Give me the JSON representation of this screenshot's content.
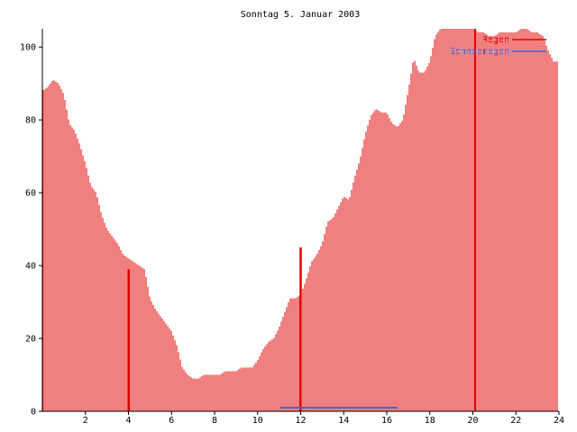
{
  "chart_data": {
    "type": "bar",
    "title": "Sonntag 5. Januar 2003",
    "xlabel": "",
    "ylabel": "",
    "xlim": [
      0,
      24
    ],
    "ylim": [
      0,
      105
    ],
    "xticks": [
      "2",
      "4",
      "6",
      "8",
      "10",
      "12",
      "14",
      "16",
      "18",
      "20",
      "22",
      "24"
    ],
    "yticks": [
      "0",
      "20",
      "40",
      "60",
      "80",
      "100"
    ],
    "grid": false,
    "legend_position": "top-right",
    "colors": {
      "series1": "#e00000",
      "series2": "#5060d0",
      "axis": "#000000"
    },
    "series": [
      {
        "name": "Regen",
        "x": [
          0,
          0.25,
          0.5,
          0.75,
          1,
          1.25,
          1.5,
          1.75,
          2,
          2.25,
          2.5,
          2.75,
          3,
          3.25,
          3.5,
          3.75,
          4,
          4.25,
          4.5,
          4.75,
          5,
          5.25,
          5.5,
          5.75,
          6,
          6.25,
          6.5,
          6.75,
          7,
          7.25,
          7.5,
          7.75,
          8,
          8.25,
          8.5,
          8.75,
          9,
          9.25,
          9.5,
          9.75,
          10,
          10.25,
          10.5,
          10.75,
          11,
          11.25,
          11.5,
          11.75,
          12,
          12.25,
          12.5,
          12.75,
          13,
          13.25,
          13.5,
          13.75,
          14,
          14.25,
          14.5,
          14.75,
          15,
          15.25,
          15.5,
          15.75,
          16,
          16.25,
          16.5,
          16.75,
          17,
          17.25,
          17.5,
          17.75,
          18,
          18.25,
          18.5,
          18.75,
          19,
          19.25,
          19.5,
          19.75,
          20,
          20.25,
          20.5,
          20.75,
          21,
          21.25,
          21.5,
          21.75,
          22,
          22.25,
          22.5,
          22.75,
          23,
          23.25,
          23.5,
          23.75
        ],
        "values": [
          88,
          89,
          91,
          90,
          87,
          79,
          77,
          73,
          68,
          62,
          60,
          54,
          50,
          48,
          46,
          43,
          42,
          41,
          40,
          39,
          31,
          28,
          26,
          24,
          22,
          18,
          12,
          10,
          9,
          9,
          10,
          10,
          10,
          10,
          11,
          11,
          11,
          12,
          12,
          12,
          14,
          17,
          19,
          20,
          23,
          27,
          31,
          31,
          32,
          36,
          41,
          43,
          46,
          52,
          53,
          56,
          59,
          58,
          64,
          69,
          76,
          81,
          83,
          82,
          82,
          79,
          78,
          80,
          88,
          97,
          93,
          93,
          96,
          103,
          105,
          105,
          105,
          105,
          105,
          105,
          105,
          104,
          104,
          103,
          103,
          104,
          104,
          104,
          104,
          105,
          105,
          104,
          104,
          103,
          99,
          96
        ]
      },
      {
        "name": "Schneeregen",
        "x": [
          11,
          16.5
        ],
        "values": [
          1,
          1
        ]
      }
    ],
    "markers": [
      {
        "x": 4,
        "value": 39
      },
      {
        "x": 12,
        "value": 45
      },
      {
        "x": 20.1,
        "value": 105
      }
    ]
  }
}
